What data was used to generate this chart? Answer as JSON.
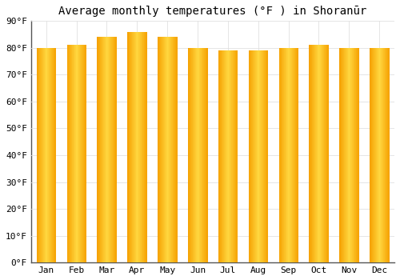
{
  "title": "Average monthly temperatures (°F ) in Shoranūr",
  "months": [
    "Jan",
    "Feb",
    "Mar",
    "Apr",
    "May",
    "Jun",
    "Jul",
    "Aug",
    "Sep",
    "Oct",
    "Nov",
    "Dec"
  ],
  "values": [
    80,
    81,
    84,
    86,
    84,
    80,
    79,
    79,
    80,
    81,
    80,
    80
  ],
  "bar_color_center": "#FFD740",
  "bar_color_edge": "#F5A000",
  "background_color": "#FFFFFF",
  "grid_color": "#E0E0E0",
  "ylim": [
    0,
    90
  ],
  "yticks": [
    0,
    10,
    20,
    30,
    40,
    50,
    60,
    70,
    80,
    90
  ],
  "title_fontsize": 10,
  "tick_fontsize": 8,
  "font_family": "monospace",
  "bar_width": 0.65
}
